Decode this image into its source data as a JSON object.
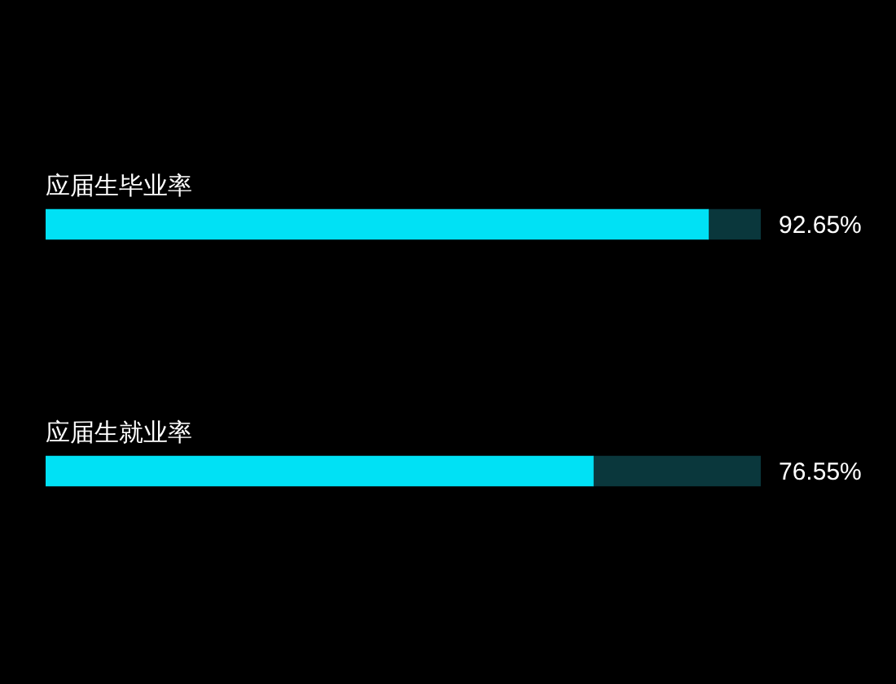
{
  "chart_data": {
    "type": "bar",
    "orientation": "horizontal",
    "stacked": true,
    "categories": [
      "应届生毕业率",
      "应届生就业率"
    ],
    "series": [
      {
        "color": "#00e1f5",
        "values": [
          92.65,
          76.55
        ],
        "value_labels": [
          "92.65%",
          "76.55%"
        ]
      },
      {
        "color": "#0a373c",
        "values": [
          7.35,
          23.45
        ]
      }
    ],
    "xlim": [
      0,
      100
    ],
    "tick_labels": "y"
  }
}
